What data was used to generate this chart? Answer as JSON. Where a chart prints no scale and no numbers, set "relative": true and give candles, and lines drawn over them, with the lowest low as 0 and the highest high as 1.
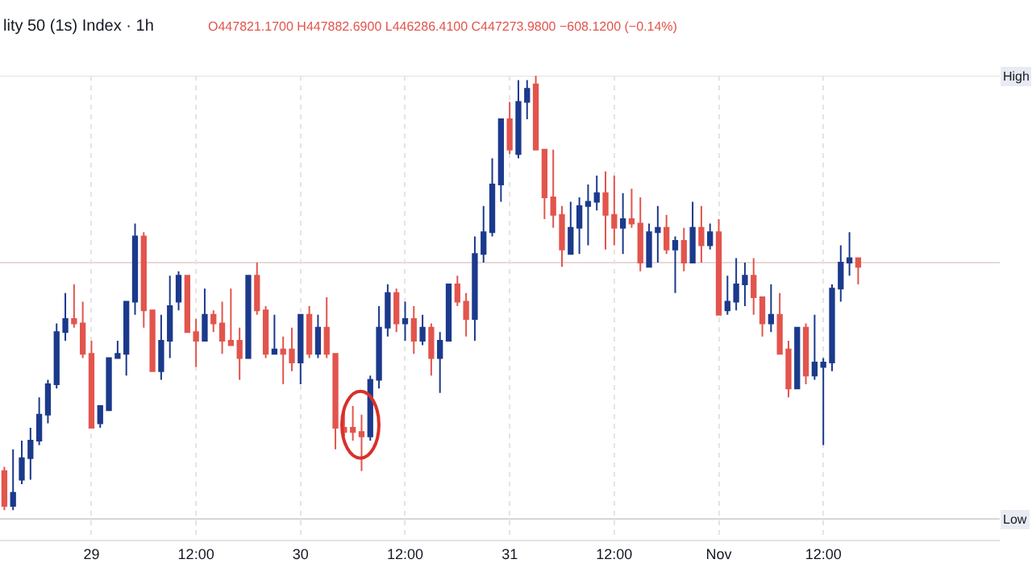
{
  "chart_data": {
    "type": "candlestick",
    "title": "lity 50 (1s) Index · 1h",
    "subtitle": "O447821.1700 H447882.6900 L446286.4100 C447273.9800 −608.1200 (−0.14%)",
    "relative": true,
    "colors": [
      "#e2554d",
      "#1b3a8c",
      "#1b3a8c",
      "#1b3a8c",
      "#1b3a8c",
      "#1b3a8c",
      "#1b3a8c",
      "#1b3a8c",
      "#e2554d",
      "#e2554d",
      "#e2554d",
      "#1b3a8c",
      "#1b3a8c",
      "#1b3a8c",
      "#1b3a8c",
      "#1b3a8c",
      "#e2554d",
      "#e2554d",
      "#1b3a8c",
      "#1b3a8c",
      "#1b3a8c",
      "#e2554d",
      "#e2554d",
      "#1b3a8c",
      "#e2554d",
      "#e2554d",
      "#e2554d",
      "#e2554d",
      "#1b3a8c",
      "#e2554d",
      "#e2554d",
      "#1b3a8c",
      "#e2554d",
      "#e2554d",
      "#1b3a8c",
      "#e2554d",
      "#1b3a8c",
      "#e2554d",
      "#e2554d",
      "#e2554d",
      "#e2554d",
      "#e2554d",
      "#1b3a8c",
      "#1b3a8c",
      "#1b3a8c",
      "#e2554d",
      "#1b3a8c",
      "#e2554d",
      "#1b3a8c",
      "#e2554d",
      "#1b3a8c",
      "#1b3a8c",
      "#e2554d",
      "#e2554d",
      "#1b3a8c",
      "#1b3a8c",
      "#1b3a8c",
      "#1b3a8c",
      "#e2554d",
      "#1b3a8c",
      "#1b3a8c",
      "#e2554d",
      "#e2554d",
      "#e2554d",
      "#e2554d",
      "#1b3a8c",
      "#1b3a8c",
      "#1b3a8c",
      "#1b3a8c",
      "#e2554d",
      "#e2554d",
      "#1b3a8c",
      "#e2554d",
      "#e2554d",
      "#1b3a8c",
      "#1b3a8c",
      "#e2554d",
      "#1b3a8c",
      "#e2554d",
      "#1b3a8c",
      "#e2554d",
      "#1b3a8c",
      "#e2554d",
      "#1b3a8c",
      "#1b3a8c",
      "#1b3a8c",
      "#e2554d",
      "#e2554d",
      "#1b3a8c",
      "#e2554d",
      "#e2554d",
      "#1b3a8c",
      "#e2554d",
      "#1b3a8c",
      "#1b3a8c",
      "#1b3a8c",
      "#1b3a8c",
      "#1b3a8c",
      "#e2554d"
    ],
    "x": [
      "--10-28T14:00",
      "--10-28T15:00",
      "--10-28T16:00",
      "--10-28T17:00",
      "--10-28T18:00",
      "--10-28T19:00",
      "--10-28T20:00",
      "--10-28T21:00",
      "--10-28T22:00",
      "--10-28T23:00",
      "--10-29T00:00",
      "--10-29T01:00",
      "--10-29T02:00",
      "--10-29T03:00",
      "--10-29T04:00",
      "--10-29T05:00",
      "--10-29T06:00",
      "--10-29T07:00",
      "--10-29T08:00",
      "--10-29T09:00",
      "--10-29T10:00",
      "--10-29T11:00",
      "--10-29T12:00",
      "--10-29T13:00",
      "--10-29T14:00",
      "--10-29T15:00",
      "--10-29T16:00",
      "--10-29T17:00",
      "--10-29T18:00",
      "--10-29T19:00",
      "--10-29T20:00",
      "--10-29T21:00",
      "--10-29T22:00",
      "--10-29T23:00",
      "--10-30T00:00",
      "--10-30T01:00",
      "--10-30T02:00",
      "--10-30T03:00",
      "--10-30T04:00",
      "--10-30T05:00",
      "--10-30T06:00",
      "--10-30T07:00",
      "--10-30T08:00",
      "--10-30T09:00",
      "--10-30T10:00",
      "--10-30T11:00",
      "--10-30T12:00",
      "--10-30T13:00",
      "--10-30T14:00",
      "--10-30T15:00",
      "--10-30T16:00",
      "--10-30T17:00",
      "--10-30T18:00",
      "--10-30T19:00",
      "--10-30T20:00",
      "--10-30T21:00",
      "--10-30T22:00",
      "--10-30T23:00",
      "--10-31T00:00",
      "--10-31T01:00",
      "--10-31T02:00",
      "--10-31T03:00",
      "--10-31T04:00",
      "--10-31T05:00",
      "--10-31T06:00",
      "--10-31T07:00",
      "--10-31T08:00",
      "--10-31T09:00",
      "--10-31T10:00",
      "--10-31T11:00",
      "--10-31T12:00",
      "--10-31T13:00",
      "--10-31T14:00",
      "--10-31T15:00",
      "--10-31T16:00",
      "--10-31T17:00",
      "--10-31T18:00",
      "--10-31T19:00",
      "--10-31T20:00",
      "--10-31T21:00",
      "--10-31T22:00",
      "--10-31T23:00",
      "--11-01T00:00",
      "--11-01T01:00",
      "--11-01T02:00",
      "--11-01T03:00",
      "--11-01T04:00",
      "--11-01T05:00",
      "--11-01T06:00",
      "--11-01T07:00",
      "--11-01T08:00",
      "--11-01T09:00",
      "--11-01T10:00",
      "--11-01T11:00",
      "--11-01T12:00",
      "--11-01T13:00",
      "--11-01T14:00",
      "--11-01T15:00",
      "--11-01T16:00"
    ],
    "ohlc": [
      [
        0.09,
        0.1,
        0,
        0.01
      ],
      [
        0.01,
        0.14,
        0,
        0.04
      ],
      [
        0.07,
        0.16,
        0.06,
        0.12
      ],
      [
        0.12,
        0.19,
        0.07,
        0.16
      ],
      [
        0.16,
        0.26,
        0.15,
        0.22
      ],
      [
        0.22,
        0.3,
        0.2,
        0.29
      ],
      [
        0.29,
        0.43,
        0.28,
        0.41
      ],
      [
        0.41,
        0.5,
        0.39,
        0.44
      ],
      [
        0.44,
        0.52,
        0.42,
        0.43
      ],
      [
        0.43,
        0.48,
        0.35,
        0.36
      ],
      [
        0.36,
        0.39,
        0.19,
        0.19
      ],
      [
        0.2,
        0.24,
        0.19,
        0.24
      ],
      [
        0.23,
        0.35,
        0.23,
        0.35
      ],
      [
        0.35,
        0.39,
        0.35,
        0.36
      ],
      [
        0.36,
        0.48,
        0.31,
        0.48
      ],
      [
        0.48,
        0.66,
        0.45,
        0.63
      ],
      [
        0.63,
        0.64,
        0.42,
        0.46
      ],
      [
        0.46,
        0.46,
        0.32,
        0.32
      ],
      [
        0.32,
        0.45,
        0.3,
        0.39
      ],
      [
        0.39,
        0.54,
        0.35,
        0.47
      ],
      [
        0.48,
        0.55,
        0.46,
        0.54
      ],
      [
        0.54,
        0.54,
        0.41,
        0.41
      ],
      [
        0.41,
        0.44,
        0.33,
        0.39
      ],
      [
        0.39,
        0.51,
        0.39,
        0.45
      ],
      [
        0.45,
        0.46,
        0.41,
        0.43
      ],
      [
        0.43,
        0.48,
        0.36,
        0.39
      ],
      [
        0.39,
        0.51,
        0.38,
        0.38
      ],
      [
        0.39,
        0.42,
        0.3,
        0.35
      ],
      [
        0.35,
        0.54,
        0.35,
        0.54
      ],
      [
        0.54,
        0.57,
        0.45,
        0.46
      ],
      [
        0.46,
        0.47,
        0.35,
        0.36
      ],
      [
        0.36,
        0.45,
        0.36,
        0.37
      ],
      [
        0.37,
        0.4,
        0.29,
        0.36
      ],
      [
        0.37,
        0.42,
        0.32,
        0.34
      ],
      [
        0.34,
        0.45,
        0.29,
        0.45
      ],
      [
        0.45,
        0.47,
        0.35,
        0.36
      ],
      [
        0.36,
        0.45,
        0.35,
        0.42
      ],
      [
        0.42,
        0.49,
        0.35,
        0.36
      ],
      [
        0.36,
        0.36,
        0.14,
        0.19
      ],
      [
        0.19,
        0.24,
        0.17,
        0.18
      ],
      [
        0.19,
        0.24,
        0.16,
        0.18
      ],
      [
        0.18,
        0.22,
        0.09,
        0.17
      ],
      [
        0.17,
        0.31,
        0.16,
        0.3
      ],
      [
        0.3,
        0.47,
        0.28,
        0.42
      ],
      [
        0.42,
        0.52,
        0.4,
        0.5
      ],
      [
        0.5,
        0.51,
        0.41,
        0.43
      ],
      [
        0.43,
        0.48,
        0.39,
        0.44
      ],
      [
        0.44,
        0.47,
        0.36,
        0.39
      ],
      [
        0.39,
        0.45,
        0.38,
        0.42
      ],
      [
        0.42,
        0.43,
        0.31,
        0.35
      ],
      [
        0.35,
        0.41,
        0.27,
        0.39
      ],
      [
        0.39,
        0.52,
        0.39,
        0.52
      ],
      [
        0.52,
        0.54,
        0.47,
        0.48
      ],
      [
        0.48,
        0.5,
        0.4,
        0.44
      ],
      [
        0.44,
        0.63,
        0.39,
        0.59
      ],
      [
        0.59,
        0.7,
        0.57,
        0.64
      ],
      [
        0.64,
        0.81,
        0.63,
        0.75
      ],
      [
        0.75,
        0.9,
        0.71,
        0.9
      ],
      [
        0.9,
        0.94,
        0.82,
        0.83
      ],
      [
        0.82,
        0.99,
        0.81,
        0.94
      ],
      [
        0.94,
        0.99,
        0.9,
        0.97
      ],
      [
        0.98,
        1,
        0.83,
        0.83
      ],
      [
        0.83,
        0.83,
        0.67,
        0.72
      ],
      [
        0.72,
        0.83,
        0.65,
        0.68
      ],
      [
        0.68,
        0.7,
        0.56,
        0.6
      ],
      [
        0.59,
        0.71,
        0.59,
        0.65
      ],
      [
        0.65,
        0.72,
        0.59,
        0.7
      ],
      [
        0.7,
        0.75,
        0.61,
        0.71
      ],
      [
        0.71,
        0.77,
        0.69,
        0.73
      ],
      [
        0.73,
        0.78,
        0.6,
        0.68
      ],
      [
        0.68,
        0.77,
        0.61,
        0.65
      ],
      [
        0.65,
        0.73,
        0.59,
        0.67
      ],
      [
        0.67,
        0.74,
        0.65,
        0.66
      ],
      [
        0.66,
        0.72,
        0.55,
        0.57
      ],
      [
        0.56,
        0.66,
        0.56,
        0.64
      ],
      [
        0.64,
        0.7,
        0.57,
        0.65
      ],
      [
        0.65,
        0.68,
        0.59,
        0.6
      ],
      [
        0.6,
        0.63,
        0.5,
        0.62
      ],
      [
        0.62,
        0.65,
        0.55,
        0.57
      ],
      [
        0.57,
        0.71,
        0.57,
        0.65
      ],
      [
        0.65,
        0.7,
        0.57,
        0.61
      ],
      [
        0.61,
        0.66,
        0.6,
        0.64
      ],
      [
        0.64,
        0.67,
        0.45,
        0.45
      ],
      [
        0.46,
        0.54,
        0.45,
        0.48
      ],
      [
        0.48,
        0.58,
        0.46,
        0.52
      ],
      [
        0.52,
        0.57,
        0.47,
        0.54
      ],
      [
        0.54,
        0.58,
        0.45,
        0.49
      ],
      [
        0.49,
        0.49,
        0.4,
        0.43
      ],
      [
        0.43,
        0.52,
        0.41,
        0.45
      ],
      [
        0.45,
        0.5,
        0.36,
        0.36
      ],
      [
        0.37,
        0.39,
        0.26,
        0.28
      ],
      [
        0.28,
        0.42,
        0.28,
        0.42
      ],
      [
        0.42,
        0.43,
        0.29,
        0.31
      ],
      [
        0.31,
        0.45,
        0.3,
        0.34
      ],
      [
        0.33,
        0.35,
        0.15,
        0.34
      ],
      [
        0.34,
        0.52,
        0.32,
        0.51
      ],
      [
        0.51,
        0.61,
        0.48,
        0.57
      ],
      [
        0.57,
        0.64,
        0.54,
        0.58
      ],
      [
        0.58,
        0.58,
        0.52,
        0.56
      ]
    ],
    "xlim": [
      "--10-28T13:30",
      "--11-02T08:15"
    ],
    "xticks": [
      {
        "value": "--10-29",
        "label": "29"
      },
      {
        "value": "--10-29T12:00",
        "label": "12:00"
      },
      {
        "value": "--10-30",
        "label": "30"
      },
      {
        "value": "--10-30T12:00",
        "label": "12:00"
      },
      {
        "value": "--10-31",
        "label": "31"
      },
      {
        "value": "--10-31T12:00",
        "label": "12:00"
      },
      {
        "value": "--11-01",
        "label": "Nov"
      },
      {
        "value": "--11-01T12:00",
        "label": "12:00"
      }
    ],
    "grid": "x",
    "legend": false,
    "ref_lines": [
      {
        "axis": "y",
        "value": 1,
        "label": "High",
        "color": "#e6e0e0"
      },
      {
        "axis": "y",
        "value": 0.57,
        "color": "#ead8d8"
      },
      {
        "axis": "y",
        "value": -0.02,
        "label": "Low",
        "color": "#d6d2d2"
      }
    ]
  }
}
